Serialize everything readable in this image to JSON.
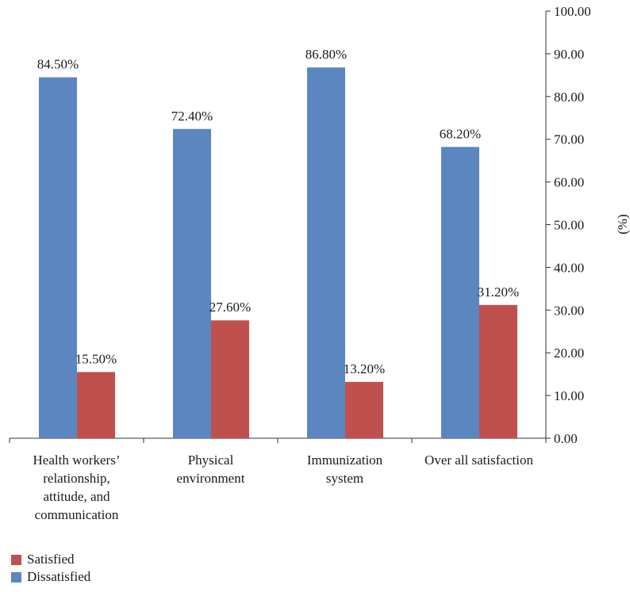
{
  "chart_data": {
    "type": "bar",
    "categories": [
      [
        "Health workers’",
        "relationship,",
        "attitude, and",
        "communication"
      ],
      [
        "Physical",
        "environment"
      ],
      [
        "Immunization",
        "system"
      ],
      [
        "Over all satisfaction"
      ]
    ],
    "series": [
      {
        "name": "Dissatisfied",
        "values": [
          84.5,
          72.4,
          86.8,
          68.2
        ],
        "labels": [
          "84.50%",
          "72.40%",
          "86.80%",
          "68.20%"
        ],
        "color": "#5B86C0"
      },
      {
        "name": "Satisfied",
        "values": [
          15.5,
          27.6,
          13.2,
          31.2
        ],
        "labels": [
          "15.50%",
          "27.60%",
          "13.20%",
          "31.20%"
        ],
        "color": "#C0504D"
      }
    ],
    "ylabel": "(%)",
    "ylim": [
      0,
      100
    ],
    "yticks": [
      "0.00",
      "10.00",
      "20.00",
      "30.00",
      "40.00",
      "50.00",
      "60.00",
      "70.00",
      "80.00",
      "90.00",
      "100.00"
    ],
    "y_axis_side": "right",
    "grid": false,
    "legend_position": "bottom-left",
    "legend": [
      {
        "label": "Satisfied",
        "color": "#C0504D"
      },
      {
        "label": "Dissatisfied",
        "color": "#5B86C0"
      }
    ]
  }
}
